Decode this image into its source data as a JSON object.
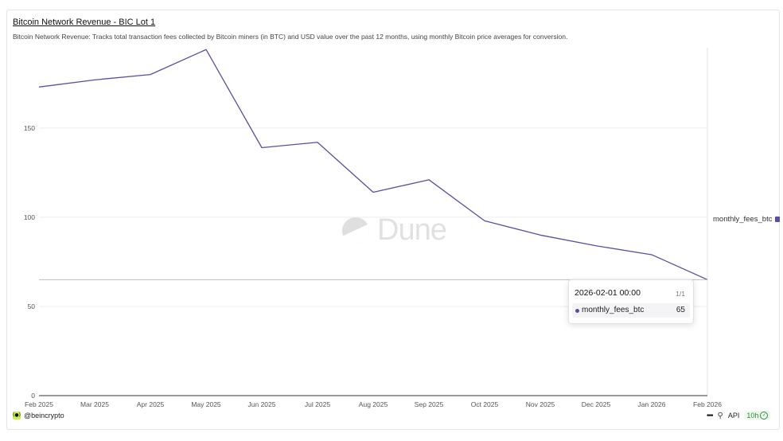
{
  "header": {
    "title": "Bitcoin Network Revenue - BIC Lot 1",
    "subtitle": "Bitcoin Network Revenue: Tracks total transaction fees collected by Bitcoin miners (in BTC) and USD value over the past 12 months, using monthly Bitcoin price averages for conversion."
  },
  "watermark": {
    "text": "Dune",
    "icon": "dune-logo-icon"
  },
  "legend": {
    "label": "monthly_fees_btc"
  },
  "tooltip": {
    "date": "2026-02-01 00:00",
    "page": "1/1",
    "series": "monthly_fees_btc",
    "value": "65"
  },
  "footer": {
    "author": "@beincrypto",
    "author_icon": "beincrypto-logo-icon",
    "more_icon": "more-dots-icon",
    "api_label": "API",
    "api_icon": "api-plug-icon",
    "refresh": "10h",
    "refresh_icon": "check-circle-icon"
  },
  "colors": {
    "series": "#5a4fa0",
    "grid": "#ececec",
    "axis": "#333333",
    "refresh_badge": "#2f8a3a"
  },
  "chart_data": {
    "type": "line",
    "title": "Bitcoin Network Revenue - BIC Lot 1",
    "xlabel": "",
    "ylabel": "",
    "categories": [
      "Feb 2025",
      "Mar 2025",
      "Apr 2025",
      "May 2025",
      "Jun 2025",
      "Jul 2025",
      "Aug 2025",
      "Sep 2025",
      "Oct 2025",
      "Nov 2025",
      "Dec 2025",
      "Jan 2026",
      "Feb 2026"
    ],
    "series": [
      {
        "name": "monthly_fees_btc",
        "values": [
          173,
          177,
          180,
          194,
          139,
          142,
          114,
          121,
          98,
          90,
          84,
          79,
          65
        ]
      }
    ],
    "yticks": [
      0,
      50,
      100,
      150
    ],
    "ylim": [
      0,
      195
    ],
    "grid": true,
    "legend": "right",
    "highlight": {
      "category": "Feb 2026",
      "value": 65
    }
  }
}
